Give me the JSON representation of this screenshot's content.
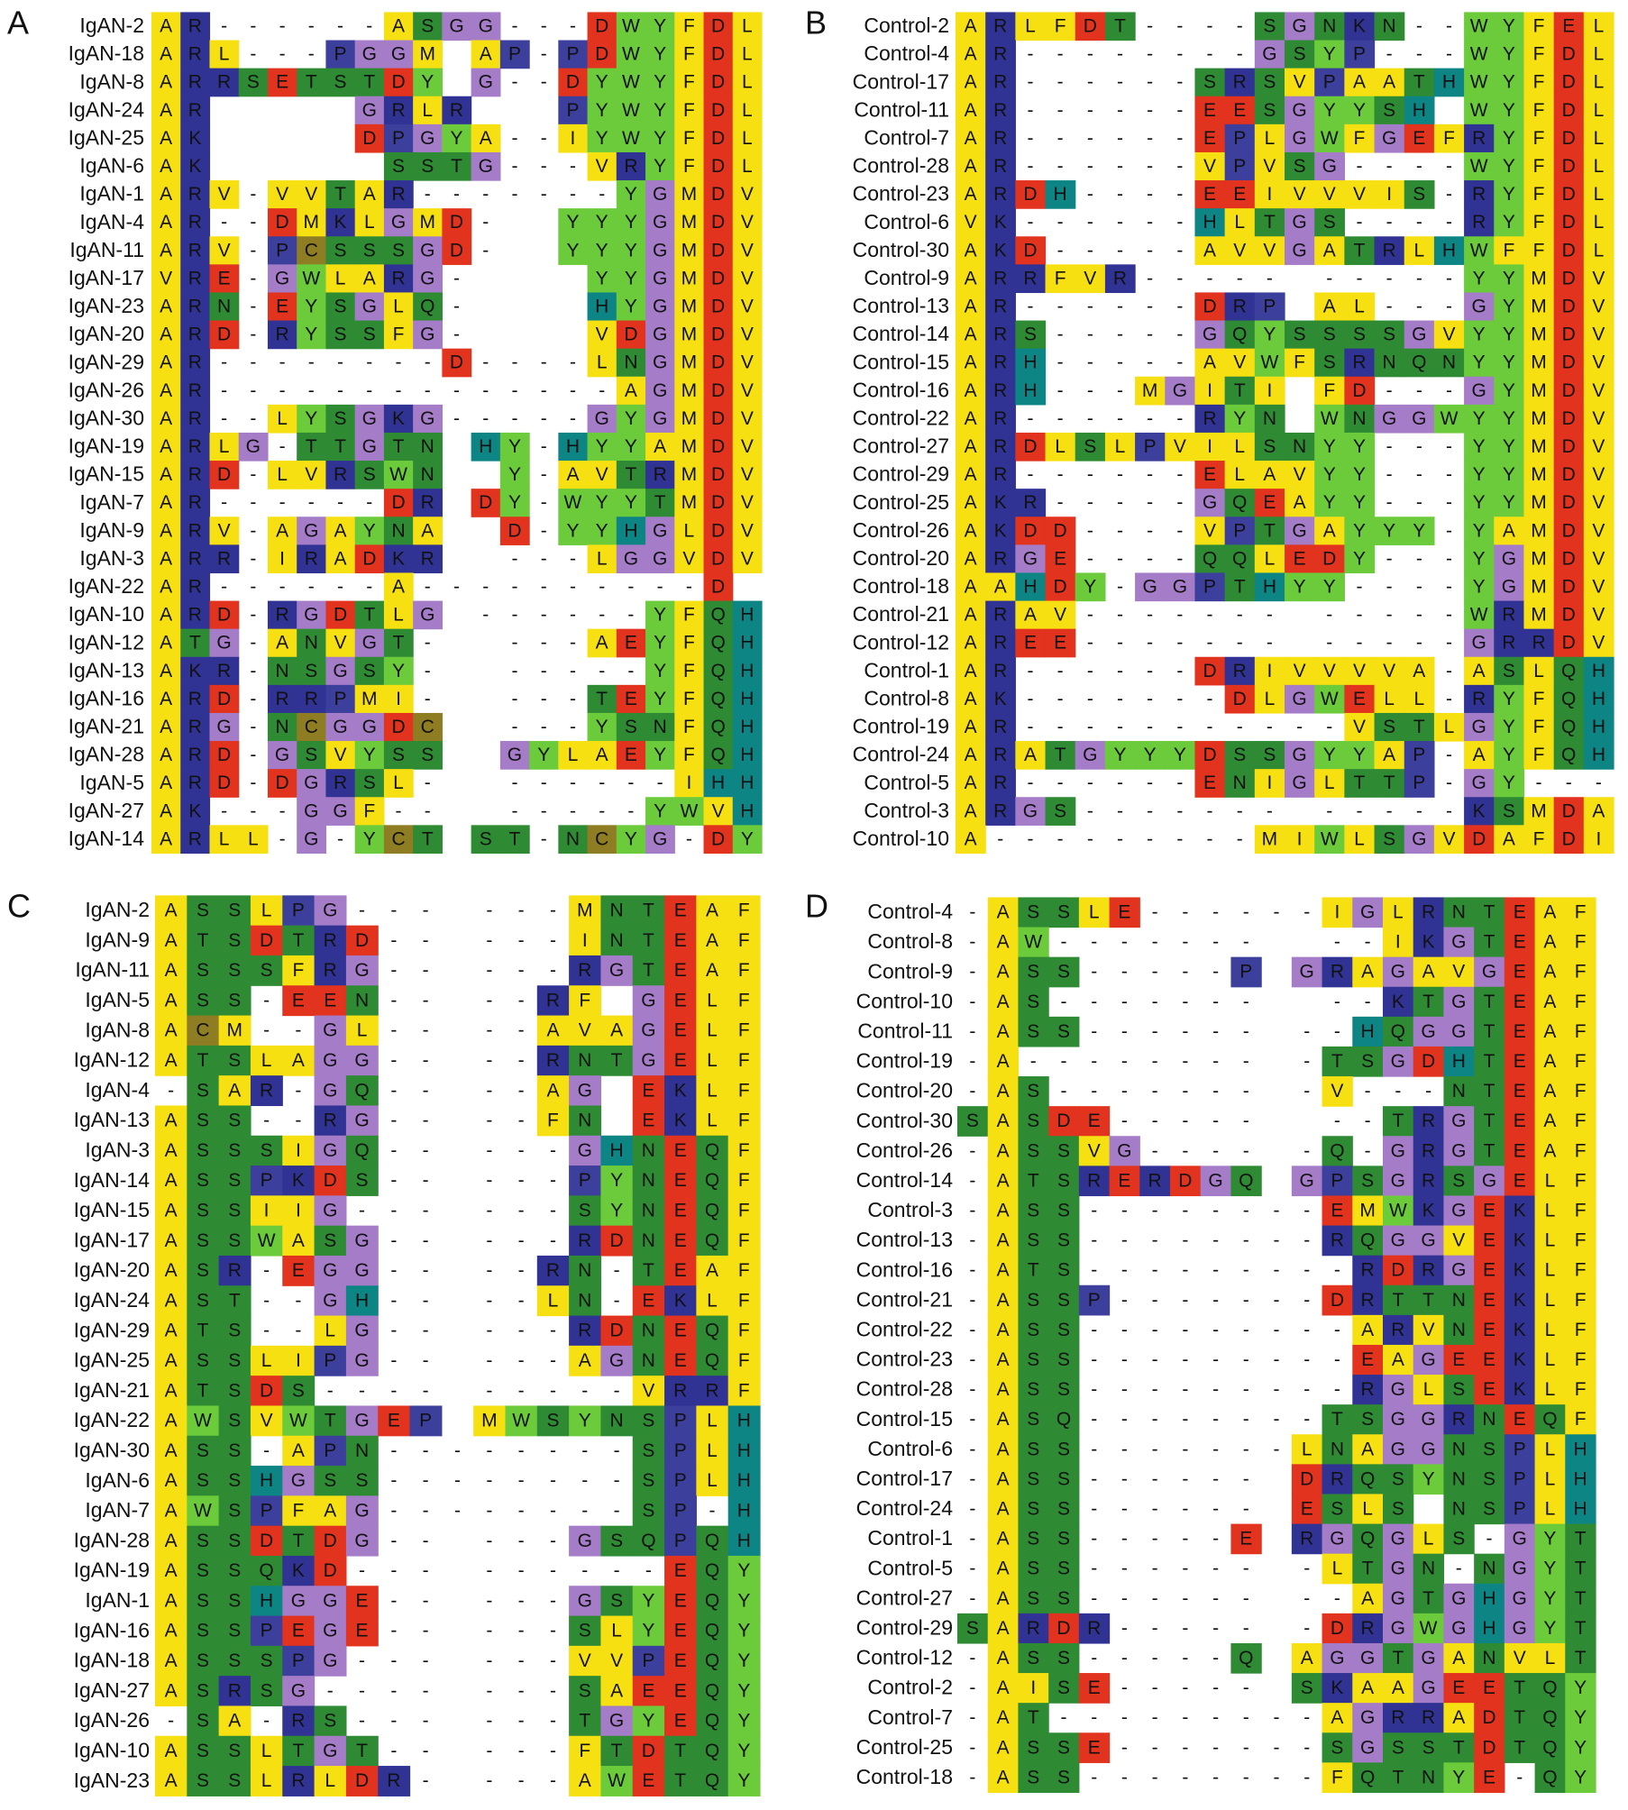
{
  "panels": [
    {
      "letter": "A",
      "rows": [
        {
          "label": "IgAN-2",
          "seq": "AR------ASGG---DWYFDL"
        },
        {
          "label": "IgAN-18",
          "seq": "ARL---PGGMAP-PDWYFDL"
        },
        {
          "label": "IgAN-8",
          "seq": "ARRSETSTDYG--DYWYFDL"
        },
        {
          "label": "IgAN-24",
          "seq": "AR.....GRLR...PYWYFDL"
        },
        {
          "label": "IgAN-25",
          "seq": "AK.....DPGYA--IYWYFDL"
        },
        {
          "label": "IgAN-6",
          "seq": "AK......SSTG---VRYFDL"
        },
        {
          "label": "IgAN-1",
          "seq": "ARV-VVTAR-------YGMDV"
        },
        {
          "label": "IgAN-4",
          "seq": "AR--DMKLGMD-..YYYGMDV"
        },
        {
          "label": "IgAN-11",
          "seq": "ARV-PCSSSGD-..YYYGMDV"
        },
        {
          "label": "IgAN-17",
          "seq": "VRE-GWLARG-....YYGMDV"
        },
        {
          "label": "IgAN-23",
          "seq": "ARN-EYSGLQ-....HYGMDV"
        },
        {
          "label": "IgAN-20",
          "seq": "ARD-RYSSFG-....VDGMDV"
        },
        {
          "label": "IgAN-29",
          "seq": "AR--------D----LNGMDV"
        },
        {
          "label": "IgAN-26",
          "seq": "AR--------------AGMDV"
        },
        {
          "label": "IgAN-30",
          "seq": "AR--LYSGKG-----GYGMDV"
        },
        {
          "label": "IgAN-19",
          "seq": "ARLG-TTGTNHY-HYYAMDV"
        },
        {
          "label": "IgAN-15",
          "seq": "ARD-LVRSWNY-AVTRMDV"
        },
        {
          "label": "IgAN-7",
          "seq": "AR------DRDY-WYYTMDV"
        },
        {
          "label": "IgAN-9",
          "seq": "ARV-AGAYNAD-YYHGLDV"
        },
        {
          "label": "IgAN-3",
          "seq": "ARR-IRADKR---LGGVDV"
        },
        {
          "label": "IgAN-22",
          "seq": "AR------A----------D."
        },
        {
          "label": "IgAN-10",
          "seq": "ARD-RGDTLG------YFQH"
        },
        {
          "label": "IgAN-12",
          "seq": "ATG-ANVGT----AEYFQH"
        },
        {
          "label": "IgAN-13",
          "seq": "AKR-NSGSY------YFQH"
        },
        {
          "label": "IgAN-16",
          "seq": "ARD-RRPMI----TEYFQH"
        },
        {
          "label": "IgAN-21",
          "seq": "ARG-NCGGDC---YSNFQH"
        },
        {
          "label": "IgAN-28",
          "seq": "ARD-GSVYSSGYLAEYFQH"
        },
        {
          "label": "IgAN-5",
          "seq": "ARD-DGRSL-------IHH"
        },
        {
          "label": "IgAN-27",
          "seq": "AK---GGF-------YWVH"
        },
        {
          "label": "IgAN-14",
          "seq": "ARLL-G-YCTST-NCYG-DY"
        }
      ]
    },
    {
      "letter": "B",
      "rows": [
        {
          "label": "Control-2",
          "seq": "ARLFDT----SGNKN--WYFEL"
        },
        {
          "label": "Control-4",
          "seq": "AR--------GSYP---WYFDL"
        },
        {
          "label": "Control-17",
          "seq": "AR------SRSVPAATHWYFDL"
        },
        {
          "label": "Control-11",
          "seq": "AR------EESGYYSH.WYFDL"
        },
        {
          "label": "Control-7",
          "seq": "AR------EPLGWFGEFRYFDL"
        },
        {
          "label": "Control-28",
          "seq": "AR------VPVSG----WYFDL"
        },
        {
          "label": "Control-23",
          "seq": "ARDH----EEIVVVIS-RYFDL"
        },
        {
          "label": "Control-6",
          "seq": "VK------HLTGS----RYFDL"
        },
        {
          "label": "Control-30",
          "seq": "AKD-----AVVGATRLHWFFDL"
        },
        {
          "label": "Control-9",
          "seq": "ARRFVR----------YYMDV"
        },
        {
          "label": "Control-13",
          "seq": "AR------DRPAL---GYMDV"
        },
        {
          "label": "Control-14",
          "seq": "ARS-----GQYSSSSGVYYMDV"
        },
        {
          "label": "Control-15",
          "seq": "ARH-----AVWFSRNQNYYMDV"
        },
        {
          "label": "Control-16",
          "seq": "ARH---MGITIFD---GYMDV"
        },
        {
          "label": "Control-22",
          "seq": "AR------RYNWNGGWYYMDV"
        },
        {
          "label": "Control-27",
          "seq": "ARDLSLPVILSNYY---YYMDV"
        },
        {
          "label": "Control-29",
          "seq": "AR------ELAVYY---YYMDV"
        },
        {
          "label": "Control-25",
          "seq": "AKR-----GQEAYY---YYMDV"
        },
        {
          "label": "Control-26",
          "seq": "AKDD----VPTGAYYY-YAMDV"
        },
        {
          "label": "Control-20",
          "seq": "ARGE----QQLEDY---YGMDV"
        },
        {
          "label": "Control-18",
          "seq": "AAHDY-GGPTHYY----YGMDV"
        },
        {
          "label": "Control-21",
          "seq": "ARAV------------WRMDV"
        },
        {
          "label": "Control-12",
          "seq": "AREE------------GRRDV"
        },
        {
          "label": "Control-1",
          "seq": "AR------DRIVVVVA-ASLQH"
        },
        {
          "label": "Control-8",
          "seq": "AK-------DLGWELL-RYFQH"
        },
        {
          "label": "Control-19",
          "seq": "AR-----------VSTLGYFQH"
        },
        {
          "label": "Control-24",
          "seq": "ARATGYYYDSSGYYAP-AYFQH"
        },
        {
          "label": "Control-5",
          "seq": "AR------ENIGLTTP-GY---"
        },
        {
          "label": "Control-3",
          "seq": "ARGS------------KSMDA"
        },
        {
          "label": "Control-10",
          "seq": "A---------MIWLSGVDAFDI"
        }
      ]
    },
    {
      "letter": "C",
      "rows": [
        {
          "label": "IgAN-2",
          "seq": "ASSLPG------MNTEAF"
        },
        {
          "label": "IgAN-9",
          "seq": "ATSDTRD-----INTEAF"
        },
        {
          "label": "IgAN-11",
          "seq": "ASSSFRG-----RGTEAF"
        },
        {
          "label": "IgAN-5",
          "seq": "ASS-EEN----RF.GELF"
        },
        {
          "label": "IgAN-8",
          "seq": "ACM--GL----AVAGELF"
        },
        {
          "label": "IgAN-12",
          "seq": "ATSLAGG----RNTGELF"
        },
        {
          "label": "IgAN-4",
          "seq": "-SAR-GQ----AG.EKLF"
        },
        {
          "label": "IgAN-13",
          "seq": "ASS--RG----FN.EKLF"
        },
        {
          "label": "IgAN-3",
          "seq": "ASSSIGQ-----GHNEQF"
        },
        {
          "label": "IgAN-14",
          "seq": "ASSPKDS-----PYNEQF"
        },
        {
          "label": "IgAN-15",
          "seq": "ASSIIG------SYNEQF"
        },
        {
          "label": "IgAN-17",
          "seq": "ASSWASG-----RDNEQF"
        },
        {
          "label": "IgAN-20",
          "seq": "ASR-EGG----RN-TEAF"
        },
        {
          "label": "IgAN-24",
          "seq": "AST--GH----LN-EKLF"
        },
        {
          "label": "IgAN-29",
          "seq": "ATS--LG-----RDNEQF"
        },
        {
          "label": "IgAN-25",
          "seq": "ASSLIPG-----AGNEQF"
        },
        {
          "label": "IgAN-21",
          "seq": "ATSDS---------VRRF"
        },
        {
          "label": "IgAN-22",
          "seq": "AWSVWTGEPMWSYNSPLH"
        },
        {
          "label": "IgAN-30",
          "seq": "ASS-APN--------SPLH"
        },
        {
          "label": "IgAN-6",
          "seq": "ASSHGSS--------SPLH"
        },
        {
          "label": "IgAN-7",
          "seq": "AWSPFAG--------SP-H"
        },
        {
          "label": "IgAN-28",
          "seq": "ASSDTDG-----GSQPQH"
        },
        {
          "label": "IgAN-19",
          "seq": "ASSQKD---------EQY"
        },
        {
          "label": "IgAN-1",
          "seq": "ASSHGGE-----GSYEQY"
        },
        {
          "label": "IgAN-16",
          "seq": "ASSPEGE-----SLYEQY"
        },
        {
          "label": "IgAN-18",
          "seq": "ASSSPG------VVPEQY"
        },
        {
          "label": "IgAN-27",
          "seq": "ASRSG-------SAEEQY"
        },
        {
          "label": "IgAN-26",
          "seq": "-SA-RS------TGYEQY"
        },
        {
          "label": "IgAN-10",
          "seq": "ASSLTGT-----FTDTQY"
        },
        {
          "label": "IgAN-23",
          "seq": "ASSLRLDR----AWETQY"
        }
      ]
    },
    {
      "letter": "D",
      "rows": [
        {
          "label": "Control-4",
          "seq": "-ASSLE------IGLRNTEAF"
        },
        {
          "label": "Control-8",
          "seq": "-AW---------IKGTEAF"
        },
        {
          "label": "Control-9",
          "seq": "-ASS-----PGRAGAVGEAF"
        },
        {
          "label": "Control-10",
          "seq": "-AS---------KTGTEAF"
        },
        {
          "label": "Control-11",
          "seq": "-ASS--------HQGGTEAF"
        },
        {
          "label": "Control-19",
          "seq": "-A---------TSGDHTEAF"
        },
        {
          "label": "Control-20",
          "seq": "-AS--------V---NTEAF"
        },
        {
          "label": "Control-30",
          "seq": "SASDE-------TRGTEAF"
        },
        {
          "label": "Control-26",
          "seq": "-ASSVG-----Q-GRGTEAF"
        },
        {
          "label": "Control-14",
          "seq": "-ATSRERDGQGPSGRSGELF"
        },
        {
          "label": "Control-3",
          "seq": "-ASS--------EMWKGEKLF"
        },
        {
          "label": "Control-13",
          "seq": "-ASS--------RQGGVEKLF"
        },
        {
          "label": "Control-16",
          "seq": "-ATS---------RDRGEKLF"
        },
        {
          "label": "Control-21",
          "seq": "-ASSP-------DRTTNEKLF"
        },
        {
          "label": "Control-22",
          "seq": "-ASS---------ARVNEKLF"
        },
        {
          "label": "Control-23",
          "seq": "-ASS---------EAGEEKLF"
        },
        {
          "label": "Control-28",
          "seq": "-ASS---------RGLSEKLF"
        },
        {
          "label": "Control-15",
          "seq": "-ASQ--------TSGGRNEQF"
        },
        {
          "label": "Control-6",
          "seq": "-ASS-------LNAGGNSPLH"
        },
        {
          "label": "Control-17",
          "seq": "-ASS------DRQSYNSPLH"
        },
        {
          "label": "Control-24",
          "seq": "-ASS------ESLS.NSPLH"
        },
        {
          "label": "Control-1",
          "seq": "-ASS-----ERGQGLS-GYT"
        },
        {
          "label": "Control-5",
          "seq": "-ASS-------LTGN-NGYT"
        },
        {
          "label": "Control-27",
          "seq": "-ASS--------AGTGHGYT"
        },
        {
          "label": "Control-29",
          "seq": "SARDR------DRGWGHGYT"
        },
        {
          "label": "Control-12",
          "seq": "-ASS-----QAGGTGANVLT"
        },
        {
          "label": "Control-2",
          "seq": "-AISE-----SKAAGEETQY"
        },
        {
          "label": "Control-7",
          "seq": "-AT---------AGRRADTQY"
        },
        {
          "label": "Control-25",
          "seq": "-ASSE-------SGSSTDTQY"
        },
        {
          "label": "Control-18",
          "seq": "-ASS--------FQTNYE-QY"
        }
      ]
    }
  ]
}
